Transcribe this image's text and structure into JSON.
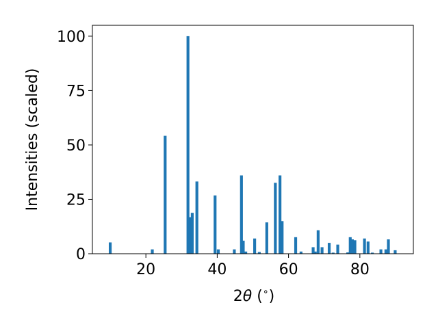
{
  "chart_data": {
    "type": "bar",
    "xlabel_prefix": "2",
    "xlabel_theta": "θ",
    "xlabel_suffix": " (",
    "xlabel_degree": "∘",
    "xlabel_close": ")",
    "ylabel": "Intensities (scaled)",
    "xlim": [
      5,
      95
    ],
    "ylim": [
      0,
      105
    ],
    "xticks": [
      20,
      40,
      60,
      80
    ],
    "yticks": [
      0,
      25,
      50,
      75,
      100
    ],
    "grid": false,
    "bar_color": "#1f77b4",
    "bars": [
      {
        "x": 10.0,
        "y": 5.2
      },
      {
        "x": 21.8,
        "y": 2.0
      },
      {
        "x": 25.4,
        "y": 54.2
      },
      {
        "x": 31.8,
        "y": 100.0
      },
      {
        "x": 32.4,
        "y": 16.8
      },
      {
        "x": 33.0,
        "y": 18.8
      },
      {
        "x": 34.3,
        "y": 33.2
      },
      {
        "x": 39.4,
        "y": 26.8
      },
      {
        "x": 40.3,
        "y": 2.0
      },
      {
        "x": 44.8,
        "y": 2.0
      },
      {
        "x": 46.8,
        "y": 36.0
      },
      {
        "x": 47.3,
        "y": 6.0
      },
      {
        "x": 48.0,
        "y": 1.0
      },
      {
        "x": 50.5,
        "y": 7.0
      },
      {
        "x": 51.8,
        "y": 0.8
      },
      {
        "x": 53.9,
        "y": 14.4
      },
      {
        "x": 56.3,
        "y": 32.6
      },
      {
        "x": 57.6,
        "y": 36.0
      },
      {
        "x": 58.2,
        "y": 15.0
      },
      {
        "x": 62.0,
        "y": 7.6
      },
      {
        "x": 63.5,
        "y": 1.0
      },
      {
        "x": 66.9,
        "y": 3.0
      },
      {
        "x": 67.5,
        "y": 1.0
      },
      {
        "x": 68.3,
        "y": 10.8
      },
      {
        "x": 69.4,
        "y": 3.0
      },
      {
        "x": 71.4,
        "y": 5.0
      },
      {
        "x": 72.5,
        "y": 0.5
      },
      {
        "x": 73.8,
        "y": 4.2
      },
      {
        "x": 76.6,
        "y": 0.6
      },
      {
        "x": 77.3,
        "y": 7.6
      },
      {
        "x": 77.9,
        "y": 6.6
      },
      {
        "x": 78.6,
        "y": 6.2
      },
      {
        "x": 81.3,
        "y": 7.0
      },
      {
        "x": 82.3,
        "y": 5.6
      },
      {
        "x": 83.5,
        "y": 0.5
      },
      {
        "x": 85.9,
        "y": 2.0
      },
      {
        "x": 87.3,
        "y": 2.0
      },
      {
        "x": 88.0,
        "y": 6.6
      },
      {
        "x": 89.9,
        "y": 1.6
      }
    ]
  }
}
